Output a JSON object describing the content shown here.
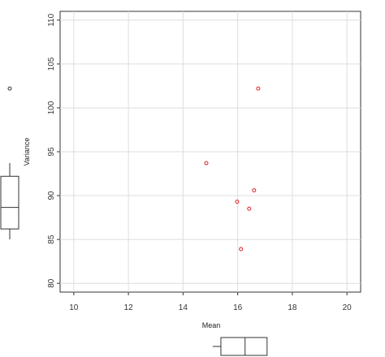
{
  "chart_data": {
    "type": "scatter",
    "xlabel": "Mean",
    "ylabel": "Variance",
    "xlim": [
      9.5,
      20.5
    ],
    "ylim": [
      79,
      111
    ],
    "x_ticks": [
      "10",
      "12",
      "14",
      "16",
      "18",
      "20"
    ],
    "y_ticks": [
      "80",
      "85",
      "90",
      "95",
      "100",
      "105",
      "110"
    ],
    "grid": true,
    "point_color": "#e0202a",
    "points": [
      {
        "x": 14.85,
        "y": 93.7
      },
      {
        "x": 15.98,
        "y": 89.3
      },
      {
        "x": 16.12,
        "y": 83.9
      },
      {
        "x": 16.42,
        "y": 88.5
      },
      {
        "x": 16.6,
        "y": 90.6
      },
      {
        "x": 16.75,
        "y": 102.2
      }
    ],
    "marginal_boxplot_x": {
      "min": 14.85,
      "q1": 15.98,
      "median": 16.27,
      "q3": 16.6,
      "max": 16.75
    },
    "marginal_boxplot_y": {
      "min": 83.9,
      "q1": 86.2,
      "median": 89.3,
      "q3": 92.2,
      "max": 93.7,
      "outliers": [
        102.2
      ]
    }
  }
}
